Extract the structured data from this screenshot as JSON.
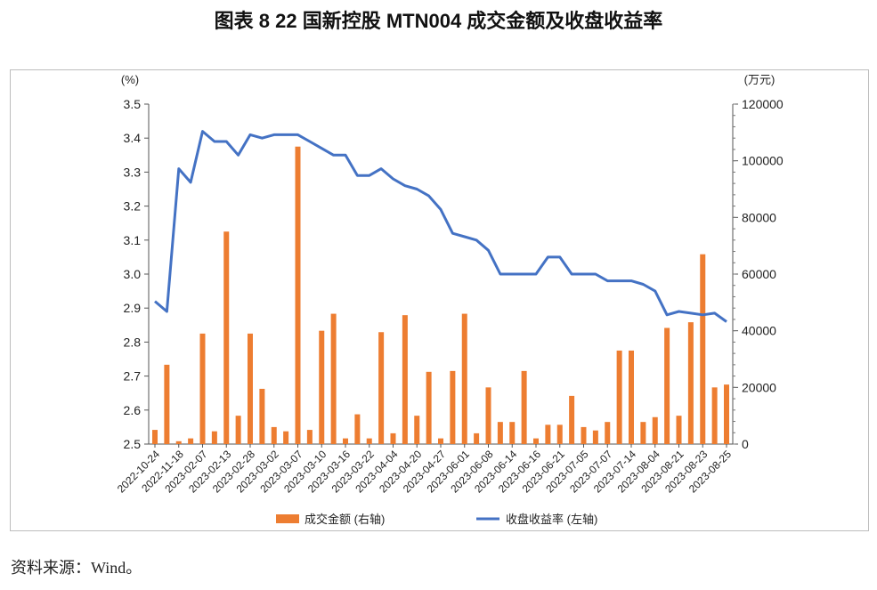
{
  "title": "图表 8 22 国新控股 MTN004 成交金额及收盘收益率",
  "source": "资料来源：Wind。",
  "colors": {
    "bar": "#ED7D31",
    "line": "#4472C4"
  },
  "chart_data": {
    "type": "bar+line",
    "left_unit": "(%)",
    "right_unit": "(万元)",
    "ylim_left": [
      2.5,
      3.5
    ],
    "ylim_right": [
      0,
      120000
    ],
    "yticks_left": [
      "2.5",
      "2.6",
      "2.7",
      "2.8",
      "2.9",
      "3.0",
      "3.1",
      "3.2",
      "3.3",
      "3.4",
      "3.5"
    ],
    "yticks_right": [
      "0",
      "20000",
      "40000",
      "60000",
      "80000",
      "100000",
      "120000"
    ],
    "x_tick_labels": [
      "2022-10-24",
      "2022-11-18",
      "2023-02-07",
      "2023-02-13",
      "2023-02-28",
      "2023-03-02",
      "2023-03-07",
      "2023-03-10",
      "2023-03-16",
      "2023-03-22",
      "2023-04-04",
      "2023-04-20",
      "2023-04-27",
      "2023-06-01",
      "2023-06-08",
      "2023-06-14",
      "2023-06-16",
      "2023-06-21",
      "2023-07-05",
      "2023-07-07",
      "2023-07-14",
      "2023-08-04",
      "2023-08-21",
      "2023-08-23",
      "2023-08-25"
    ],
    "grid": false,
    "legend_position": "bottom",
    "series": [
      {
        "name": "成交金额 (右轴)",
        "type": "bar",
        "axis": "right",
        "values": [
          5000,
          28000,
          1000,
          2000,
          39000,
          4500,
          75000,
          10000,
          39000,
          19500,
          6000,
          4500,
          105000,
          5000,
          40000,
          46000,
          2000,
          10500,
          2000,
          39500,
          3800,
          45500,
          10000,
          25500,
          2000,
          25800,
          46000,
          3800,
          20000,
          7800,
          7800,
          25800,
          2000,
          6800,
          6800,
          17000,
          6000,
          4800,
          7800,
          33000,
          33000,
          7800,
          9500,
          41000,
          10000,
          43000,
          67000,
          20000,
          21000
        ]
      },
      {
        "name": "收盘收益率 (左轴)",
        "type": "line",
        "axis": "left",
        "values": [
          2.92,
          2.89,
          3.31,
          3.27,
          3.42,
          3.39,
          3.39,
          3.35,
          3.41,
          3.4,
          3.41,
          3.41,
          3.41,
          3.39,
          3.37,
          3.35,
          3.35,
          3.29,
          3.29,
          3.31,
          3.28,
          3.26,
          3.25,
          3.23,
          3.19,
          3.12,
          3.11,
          3.1,
          3.07,
          3.0,
          3.0,
          3.0,
          3.0,
          3.05,
          3.05,
          3.0,
          3.0,
          3.0,
          2.98,
          2.98,
          2.98,
          2.97,
          2.95,
          2.88,
          2.89,
          2.885,
          2.88,
          2.885,
          2.86
        ]
      }
    ]
  }
}
